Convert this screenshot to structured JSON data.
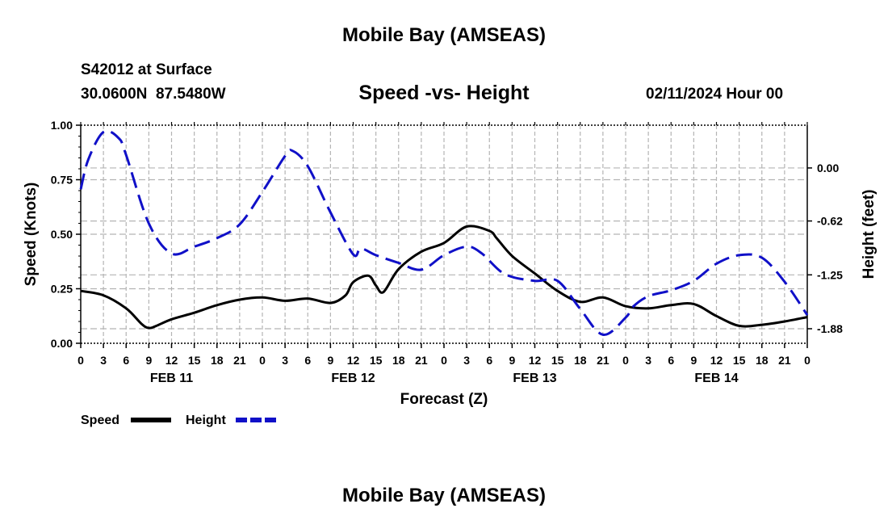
{
  "header": {
    "title": "Mobile Bay (AMSEAS)",
    "station": "S42012 at Surface",
    "coords": "30.0600N  87.5480W",
    "chart_title": "Speed -vs- Height",
    "datetime": "02/11/2024 Hour 00"
  },
  "footer": {
    "title": "Mobile Bay (AMSEAS)"
  },
  "colors": {
    "speed": "#000000",
    "height": "#1010c8",
    "grid": "#b4b4b4"
  },
  "chart_data": {
    "type": "line",
    "title": "Speed -vs- Height",
    "xlabel": "Forecast (Z)",
    "ylabel_left": "Speed (Knots)",
    "ylabel_right": "Height (feet)",
    "x_range_hours": [
      0,
      96
    ],
    "x_tick_step_hours": 3,
    "x_tick_labels": [
      "0",
      "3",
      "6",
      "9",
      "12",
      "15",
      "18",
      "21",
      "0",
      "3",
      "6",
      "9",
      "12",
      "15",
      "18",
      "21",
      "0",
      "3",
      "6",
      "9",
      "12",
      "15",
      "18",
      "21",
      "0",
      "3",
      "6",
      "9",
      "12",
      "15",
      "18",
      "21",
      "0"
    ],
    "date_labels": [
      {
        "hour": 12,
        "label": "FEB 11"
      },
      {
        "hour": 36,
        "label": "FEB 12"
      },
      {
        "hour": 60,
        "label": "FEB 13"
      },
      {
        "hour": 84,
        "label": "FEB 14"
      }
    ],
    "left_axis": {
      "ylim": [
        0,
        1
      ],
      "ticks": [
        0,
        0.25,
        0.5,
        0.75,
        1.0
      ],
      "tick_labels": [
        "0.00",
        "0.25",
        "0.50",
        "0.75",
        "1.00"
      ]
    },
    "right_axis": {
      "ylim": [
        -2.05,
        0.5
      ],
      "ticks": [
        0.0,
        -0.62,
        -1.25,
        -1.88
      ],
      "tick_labels": [
        "0.00",
        "-0.62",
        "-1.25",
        "-1.88"
      ]
    },
    "series": [
      {
        "name": "Speed",
        "axis": "left",
        "style": "solid",
        "hours": [
          0,
          3,
          6,
          8,
          9,
          10,
          12,
          15,
          18,
          21,
          24,
          27,
          30,
          33,
          35,
          36,
          38,
          39,
          40,
          42,
          45,
          48,
          51,
          54,
          55,
          57,
          60,
          63,
          66,
          69,
          72,
          75,
          78,
          81,
          84,
          87,
          90,
          93,
          96
        ],
        "values": [
          0.24,
          0.22,
          0.16,
          0.09,
          0.07,
          0.08,
          0.11,
          0.14,
          0.175,
          0.2,
          0.21,
          0.195,
          0.205,
          0.185,
          0.22,
          0.28,
          0.31,
          0.265,
          0.235,
          0.34,
          0.42,
          0.46,
          0.535,
          0.515,
          0.48,
          0.4,
          0.32,
          0.24,
          0.19,
          0.21,
          0.17,
          0.16,
          0.175,
          0.18,
          0.125,
          0.08,
          0.085,
          0.1,
          0.12
        ]
      },
      {
        "name": "Height",
        "axis": "right",
        "style": "dashed",
        "hours": [
          0,
          1,
          3,
          5,
          6,
          9,
          12,
          15,
          18,
          21,
          24,
          27,
          28,
          30,
          33,
          36,
          37,
          39,
          42,
          45,
          48,
          51,
          53,
          56,
          60,
          63,
          66,
          69,
          72,
          73,
          75,
          78,
          81,
          84,
          87,
          90,
          93,
          96
        ],
        "values": [
          -0.25,
          0.1,
          0.42,
          0.35,
          0.15,
          -0.65,
          -1.0,
          -0.92,
          -0.82,
          -0.66,
          -0.28,
          0.14,
          0.2,
          0.02,
          -0.52,
          -1.01,
          -0.94,
          -1.02,
          -1.11,
          -1.19,
          -1.02,
          -0.92,
          -1.0,
          -1.24,
          -1.32,
          -1.32,
          -1.65,
          -1.95,
          -1.75,
          -1.62,
          -1.5,
          -1.43,
          -1.32,
          -1.12,
          -1.02,
          -1.05,
          -1.33,
          -1.72
        ]
      }
    ],
    "legend": [
      "Speed",
      "Height"
    ],
    "grid": true
  }
}
